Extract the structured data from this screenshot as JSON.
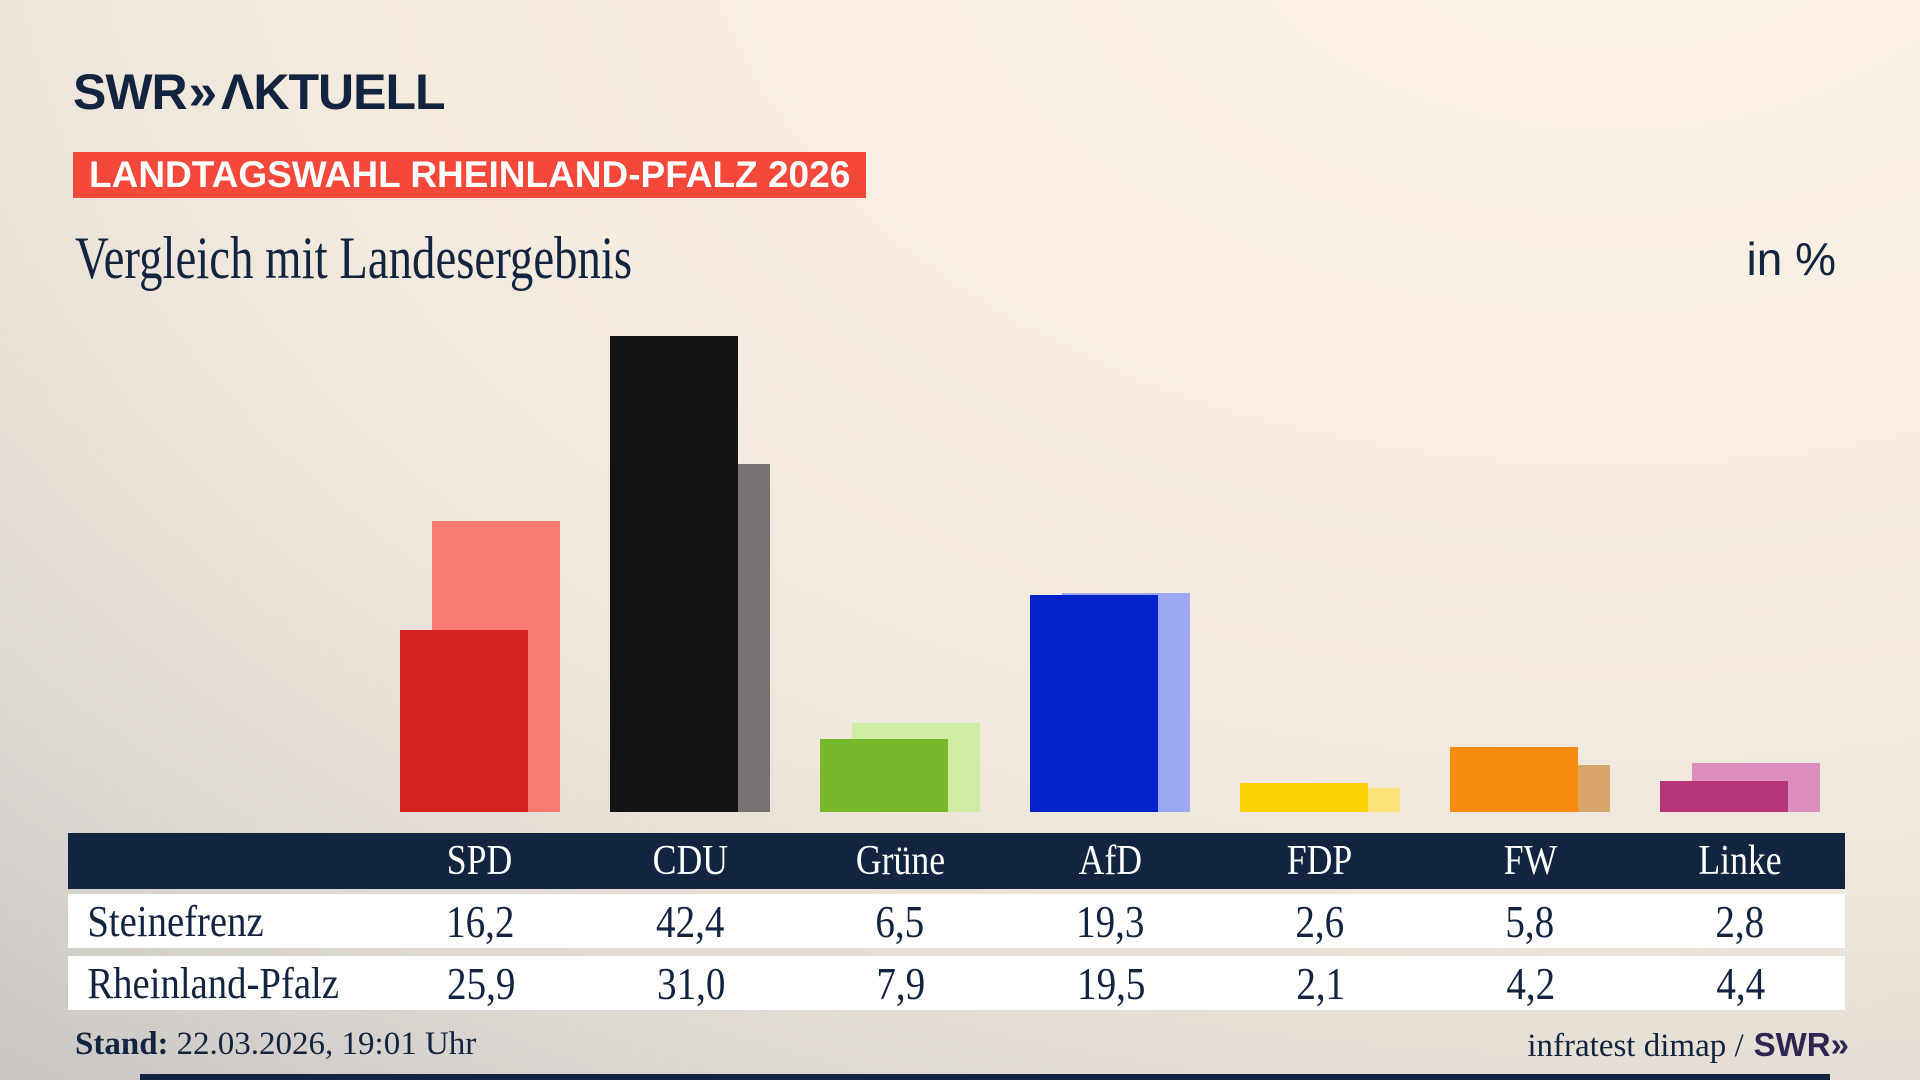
{
  "logo": {
    "brand": "SWR",
    "chevrons": "»",
    "suffix": "ΛKTUELL"
  },
  "badge": {
    "label": "LANDTAGSWAHL RHEINLAND-PFALZ 2026"
  },
  "title": "Vergleich mit Landesergebnis",
  "unit_label": "in %",
  "chart_data": {
    "type": "bar",
    "title": "Vergleich mit Landesergebnis",
    "unit": "%",
    "categories": [
      "SPD",
      "CDU",
      "Grüne",
      "AfD",
      "FDP",
      "FW",
      "Linke"
    ],
    "series": [
      {
        "name": "Steinefrenz",
        "role": "foreground",
        "values": [
          16.2,
          42.4,
          6.5,
          19.3,
          2.6,
          5.8,
          2.8
        ],
        "colors": [
          "#d42221",
          "#131313",
          "#77b92a",
          "#0522cc",
          "#fed305",
          "#fa8b11",
          "#b73479"
        ]
      },
      {
        "name": "Rheinland-Pfalz",
        "role": "background",
        "values": [
          25.9,
          31.0,
          7.9,
          19.5,
          2.1,
          4.2,
          4.4
        ],
        "colors": [
          "#fb7a71",
          "#767272",
          "#cfeca6",
          "#9ba9f4",
          "#fee478",
          "#d8a56a",
          "#de8ebc"
        ]
      }
    ],
    "ylim": [
      0,
      45
    ],
    "grid": false,
    "legend": "table below chart"
  },
  "table": {
    "columns": [
      "SPD",
      "CDU",
      "Grüne",
      "AfD",
      "FDP",
      "FW",
      "Linke"
    ],
    "rows": [
      {
        "label": "Steinefrenz",
        "values": [
          "16,2",
          "42,4",
          "6,5",
          "19,3",
          "2,6",
          "5,8",
          "2,8"
        ]
      },
      {
        "label": "Rheinland-Pfalz",
        "values": [
          "25,9",
          "31,0",
          "7,9",
          "19,5",
          "2,1",
          "4,2",
          "4,4"
        ]
      }
    ]
  },
  "footer": {
    "stand_label": "Stand:",
    "stand_value": "22.03.2026, 19:01 Uhr",
    "source_text": "infratest dimap /",
    "source_brand": "SWR",
    "source_chevrons": "»"
  },
  "colors": {
    "navy": "#132440",
    "badge_red": "#f4483b",
    "table_header_bg": "#132440",
    "row_bg": "#ffffff",
    "background_light": "#fbf2e6",
    "background_dark": "#c8c5c2"
  }
}
